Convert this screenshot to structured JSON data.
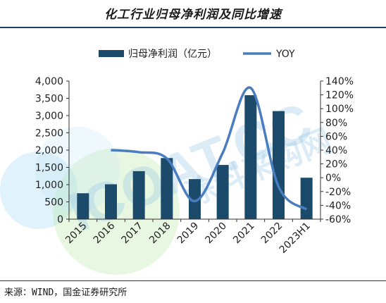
{
  "title": "化工行业归母净利润及同比增速",
  "source": "来源：WIND，国金证券研究所",
  "watermark": {
    "main": "ICOAT.CC",
    "sub": "涂料采购网",
    "colors": [
      "#7fc4e8",
      "#9fd98a",
      "#9ad0ee"
    ]
  },
  "chart_data": {
    "type": "bar",
    "categories": [
      "2015",
      "2016",
      "2017",
      "2018",
      "2019",
      "2020",
      "2021",
      "2022",
      "2023H1"
    ],
    "series": [
      {
        "name": "归母净利润（亿元）",
        "type": "bar",
        "axis": "left",
        "color": "#1b4a6b",
        "values": [
          750,
          1010,
          1390,
          1770,
          1160,
          1570,
          3590,
          3130,
          1200
        ]
      },
      {
        "name": "YOY",
        "type": "line",
        "axis": "right",
        "color": "#4a7dc0",
        "values": [
          null,
          40,
          37,
          28,
          -34,
          36,
          130,
          -13,
          -46
        ]
      }
    ],
    "y_left": {
      "min": 0,
      "max": 4000,
      "ticks": [
        0,
        500,
        1000,
        1500,
        2000,
        2500,
        3000,
        3500,
        4000
      ],
      "tick_labels": [
        "0",
        "500",
        "1,000",
        "1,500",
        "2,000",
        "2,500",
        "3,000",
        "3,500",
        "4,000"
      ]
    },
    "y_right": {
      "min": -60,
      "max": 140,
      "ticks": [
        -60,
        -40,
        -20,
        0,
        20,
        40,
        60,
        80,
        100,
        120,
        140
      ],
      "tick_labels": [
        "-60%",
        "-40%",
        "-20%",
        "0%",
        "20%",
        "40%",
        "60%",
        "80%",
        "100%",
        "120%",
        "140%"
      ]
    },
    "legend_position": "top",
    "grid": false
  }
}
